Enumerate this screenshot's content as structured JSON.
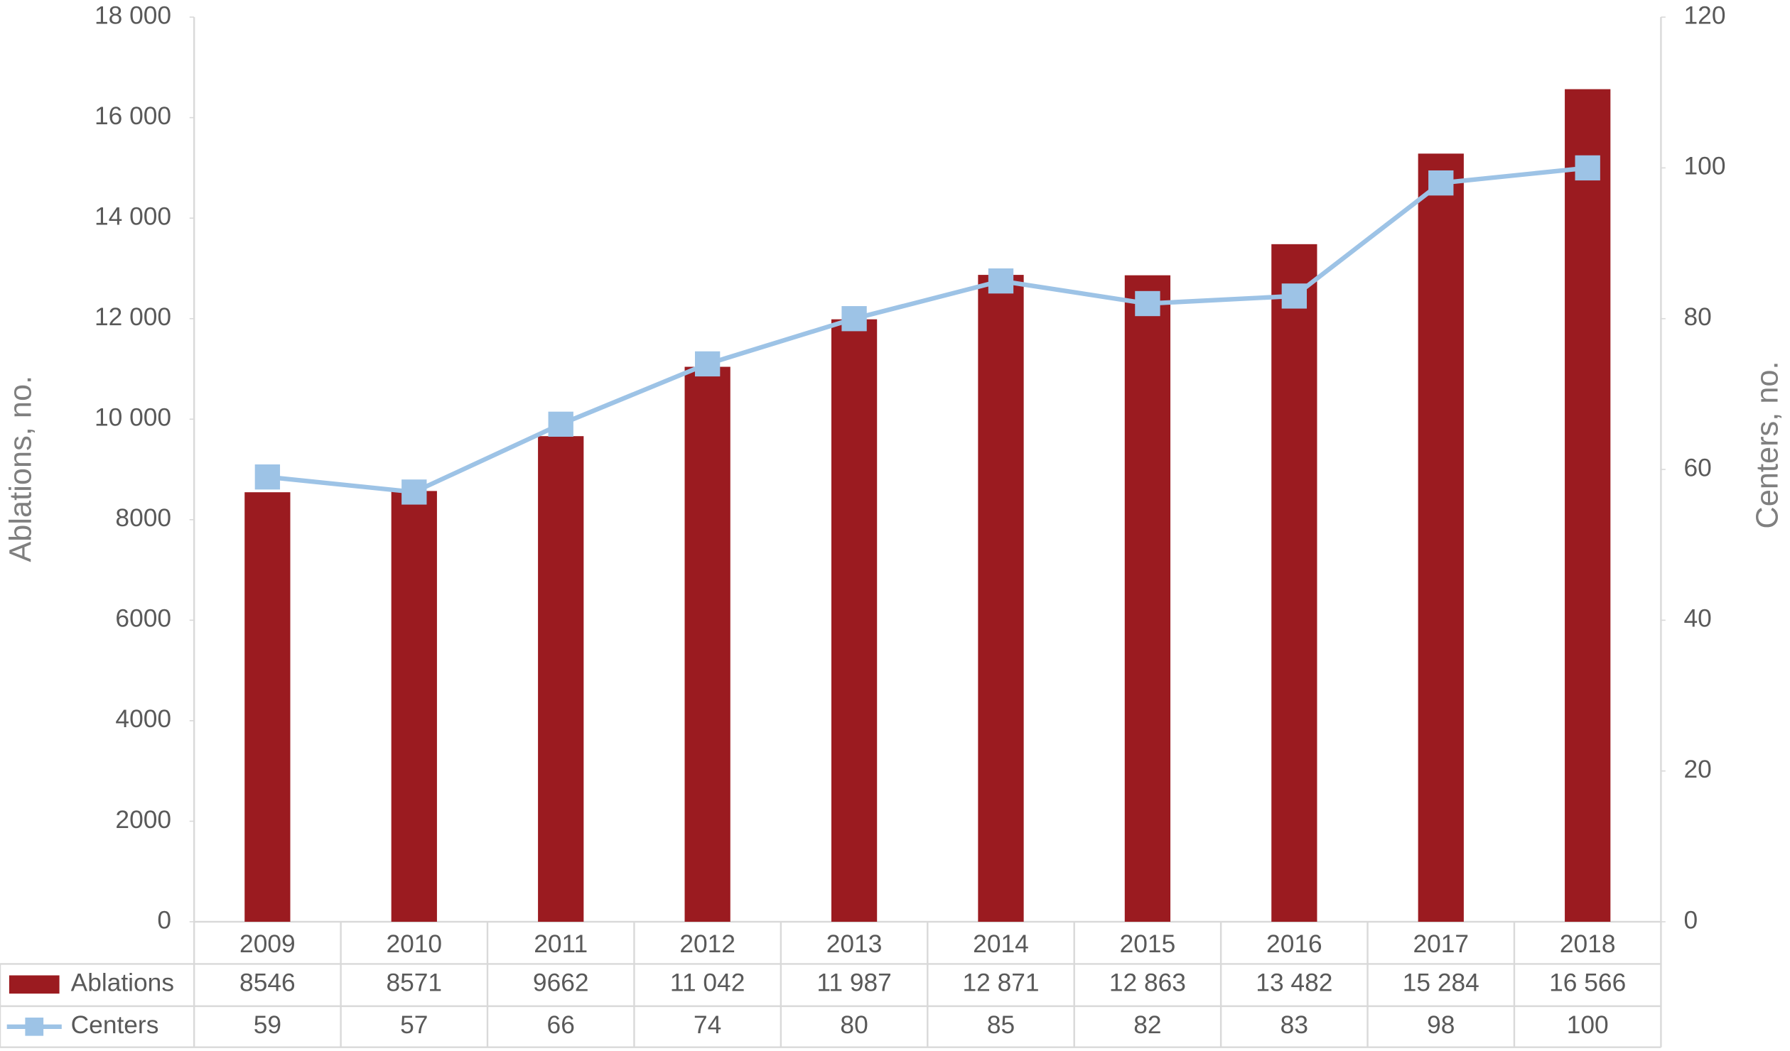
{
  "chart_data": {
    "type": "bar",
    "categories": [
      "2009",
      "2010",
      "2011",
      "2012",
      "2013",
      "2014",
      "2015",
      "2016",
      "2017",
      "2018"
    ],
    "series": [
      {
        "name": "Ablations",
        "color": "#9b1b20",
        "values": [
          8546,
          8571,
          9662,
          11042,
          11987,
          12871,
          12863,
          13482,
          15284,
          16566
        ],
        "value_labels": [
          "8546",
          "8571",
          "9662",
          "11 042",
          "11 987",
          "12 871",
          "12 863",
          "13 482",
          "15 284",
          "16 566"
        ]
      },
      {
        "name": "Centers",
        "color": "#9dc3e6",
        "type": "line",
        "axis": "y2",
        "values": [
          59,
          57,
          66,
          74,
          80,
          85,
          82,
          83,
          98,
          100
        ]
      }
    ],
    "y_label": "Ablations, no.",
    "y2_label": "Centers, no.",
    "ylim": [
      0,
      18000
    ],
    "yticks": [
      0,
      2000,
      4000,
      6000,
      8000,
      {
        "value": 10000,
        "label": "10 000"
      },
      {
        "value": 12000,
        "label": "12 000"
      },
      {
        "value": 14000,
        "label": "14 000"
      },
      {
        "value": 16000,
        "label": "16 000"
      },
      {
        "value": 18000,
        "label": "18 000"
      }
    ],
    "y2lim": [
      0,
      120
    ],
    "y2ticks": [
      0,
      20,
      40,
      60,
      80,
      100,
      120
    ]
  }
}
